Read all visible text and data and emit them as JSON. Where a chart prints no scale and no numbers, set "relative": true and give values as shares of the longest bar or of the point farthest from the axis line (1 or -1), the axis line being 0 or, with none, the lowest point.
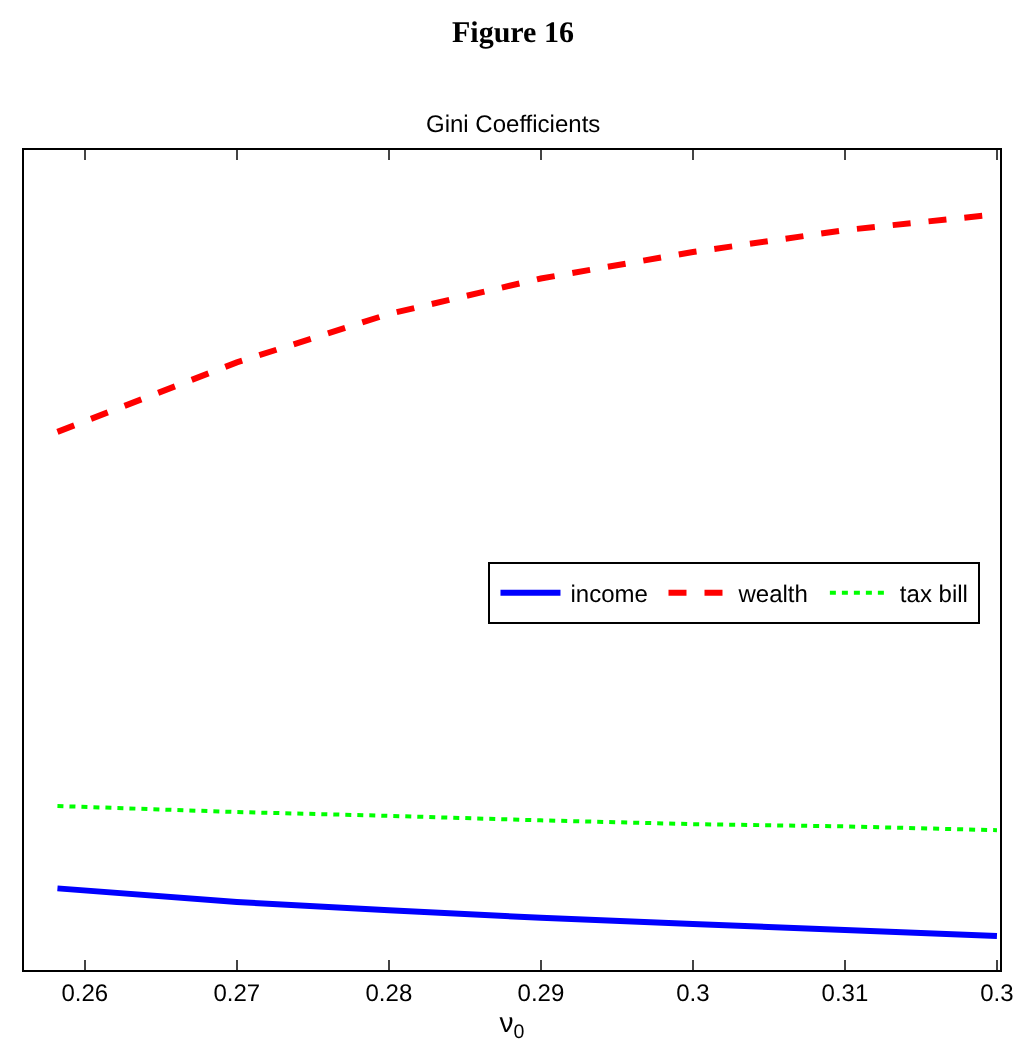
{
  "chart_data": {
    "type": "line",
    "title": "Figure 16",
    "subtitle": "Gini Coefficients",
    "xlabel": "ν$_{0}$",
    "relative": true,
    "x": [
      0.2582,
      0.27,
      0.28,
      0.29,
      0.3,
      0.31,
      0.32
    ],
    "xlim": [
      0.256,
      0.3202
    ],
    "xticks": [
      0.26,
      0.27,
      0.28,
      0.29,
      0.3,
      0.31,
      {
        "value": 0.32,
        "label": "0.3"
      }
    ],
    "series": [
      {
        "name": "income",
        "color": "#0000ff",
        "line_style": "solid",
        "values": [
          0.108,
          0.09,
          0.079,
          0.069,
          0.061,
          0.053,
          0.045
        ]
      },
      {
        "name": "wealth",
        "color": "#ff0000",
        "line_style": "dashed",
        "values": [
          0.712,
          0.804,
          0.868,
          0.915,
          0.95,
          0.979,
          1.0
        ]
      },
      {
        "name": "tax bill",
        "color": "#00ff00",
        "line_style": "dotted",
        "values": [
          0.217,
          0.209,
          0.204,
          0.198,
          0.193,
          0.19,
          0.185
        ]
      }
    ],
    "legend": "right"
  }
}
